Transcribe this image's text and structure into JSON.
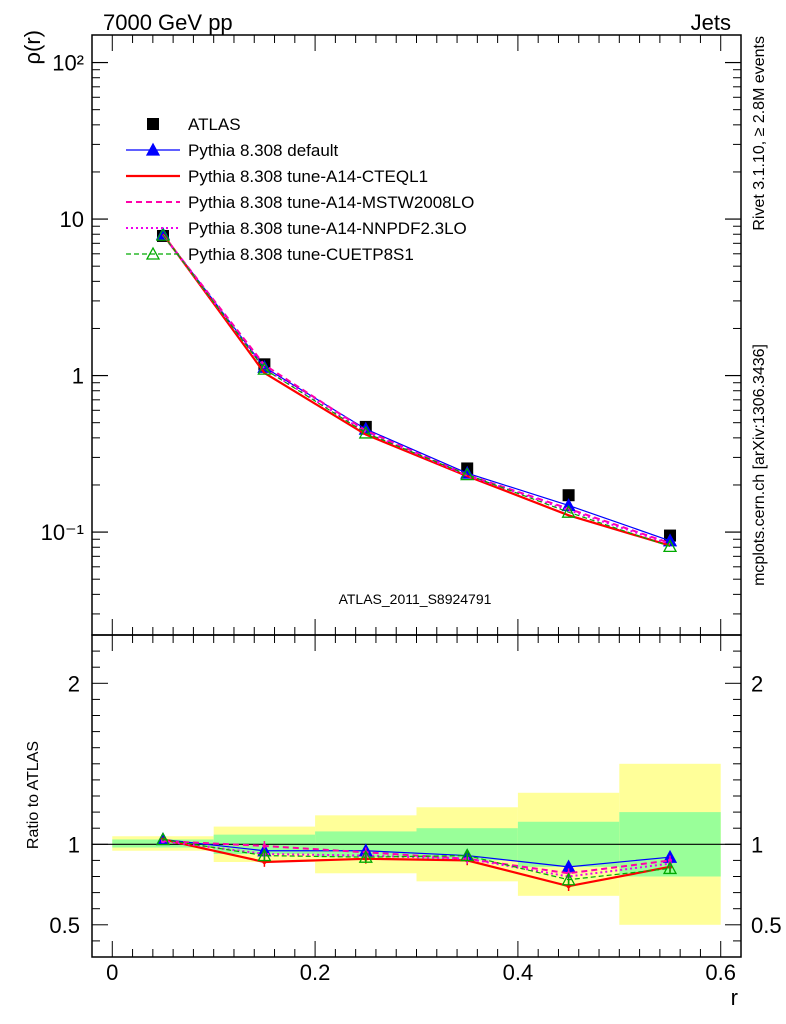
{
  "header": {
    "left": "7000 GeV pp",
    "right": "Jets"
  },
  "side_labels": {
    "rivet": "Rivet 3.1.10, ≥ 2.8M events",
    "mcplots": "mcplots.cern.ch [arXiv:1306.3436]"
  },
  "analysis_id": "ATLAS_2011_S8924791",
  "chart_data": [
    {
      "type": "line",
      "panel": "main",
      "ylabel": "ρ(r)",
      "yscale": "log",
      "xlim": [
        -0.02,
        0.62
      ],
      "ylim": [
        0.022,
        150
      ],
      "ytick_labels": [
        "10⁻¹",
        "1",
        "10",
        "10²"
      ],
      "legend_position": "upper-left",
      "x": [
        0.05,
        0.15,
        0.25,
        0.35,
        0.45,
        0.55
      ],
      "series": [
        {
          "name": "ATLAS",
          "style": "data",
          "color": "#000000",
          "values": [
            7.8,
            1.18,
            0.47,
            0.255,
            0.172,
            0.095
          ]
        },
        {
          "name": "Pythia 8.308 default",
          "style": "solid-thin",
          "marker": "triangle-filled",
          "color": "#0000ff",
          "values": [
            8.0,
            1.13,
            0.455,
            0.238,
            0.148,
            0.088
          ]
        },
        {
          "name": "Pythia 8.308 tune-A14-CTEQL1",
          "style": "solid-thick",
          "marker": "none",
          "color": "#ff0000",
          "values": [
            8.0,
            1.04,
            0.42,
            0.228,
            0.128,
            0.082
          ]
        },
        {
          "name": "Pythia 8.308 tune-A14-MSTW2008LO",
          "style": "dashed",
          "marker": "none",
          "color": "#ff00aa",
          "values": [
            7.9,
            1.17,
            0.445,
            0.232,
            0.141,
            0.085
          ]
        },
        {
          "name": "Pythia 8.308 tune-A14-NNPDF2.3LO",
          "style": "dotted",
          "marker": "none",
          "color": "#ee00ee",
          "values": [
            7.9,
            1.11,
            0.435,
            0.23,
            0.138,
            0.084
          ]
        },
        {
          "name": "Pythia 8.308 tune-CUETP8S1",
          "style": "dashed-green",
          "marker": "triangle-open",
          "color": "#00aa00",
          "values": [
            7.9,
            1.1,
            0.43,
            0.233,
            0.134,
            0.081
          ]
        }
      ]
    },
    {
      "type": "line",
      "panel": "ratio",
      "ylabel": "Ratio to ATLAS",
      "xlabel": "r",
      "xlim": [
        -0.02,
        0.62
      ],
      "ylim": [
        0.3,
        2.3
      ],
      "xtick_labels": [
        "0",
        "0.2",
        "0.4",
        "0.6"
      ],
      "ytick_labels": [
        "0.5",
        "1",
        "2"
      ],
      "bins": [
        [
          0.0,
          0.1
        ],
        [
          0.1,
          0.2
        ],
        [
          0.2,
          0.3
        ],
        [
          0.3,
          0.4
        ],
        [
          0.4,
          0.5
        ],
        [
          0.5,
          0.6
        ]
      ],
      "band_green": [
        [
          0.98,
          1.03
        ],
        [
          0.94,
          1.06
        ],
        [
          0.92,
          1.08
        ],
        [
          0.9,
          1.1
        ],
        [
          0.86,
          1.14
        ],
        [
          0.8,
          1.2
        ]
      ],
      "band_yellow": [
        [
          0.96,
          1.05
        ],
        [
          0.89,
          1.11
        ],
        [
          0.82,
          1.18
        ],
        [
          0.77,
          1.23
        ],
        [
          0.68,
          1.32
        ],
        [
          0.5,
          1.5
        ]
      ],
      "x": [
        0.05,
        0.15,
        0.25,
        0.35,
        0.45,
        0.55
      ],
      "series": [
        {
          "name": "Pythia 8.308 default",
          "color": "#0000ff",
          "values": [
            1.03,
            0.96,
            0.96,
            0.93,
            0.86,
            0.92
          ],
          "errors": [
            0.01,
            0.03,
            0.03,
            0.03,
            0.03,
            0.03
          ]
        },
        {
          "name": "Pythia 8.308 tune-A14-CTEQL1",
          "color": "#ff0000",
          "values": [
            1.03,
            0.89,
            0.91,
            0.9,
            0.74,
            0.86
          ],
          "errors": [
            0.01,
            0.03,
            0.03,
            0.03,
            0.03,
            0.03
          ]
        },
        {
          "name": "Pythia 8.308 tune-A14-MSTW2008LO",
          "color": "#ff00aa",
          "values": [
            1.02,
            0.99,
            0.95,
            0.91,
            0.82,
            0.9
          ],
          "errors": [
            0.01,
            0.03,
            0.03,
            0.03,
            0.03,
            0.03
          ]
        },
        {
          "name": "Pythia 8.308 tune-A14-NNPDF2.3LO",
          "color": "#ee00ee",
          "values": [
            1.02,
            0.94,
            0.93,
            0.91,
            0.8,
            0.88
          ],
          "errors": [
            0.01,
            0.03,
            0.03,
            0.03,
            0.03,
            0.03
          ]
        },
        {
          "name": "Pythia 8.308 tune-CUETP8S1",
          "color": "#00aa00",
          "values": [
            1.03,
            0.93,
            0.92,
            0.93,
            0.78,
            0.85
          ],
          "errors": [
            0.01,
            0.03,
            0.03,
            0.03,
            0.03,
            0.03
          ]
        }
      ]
    }
  ]
}
